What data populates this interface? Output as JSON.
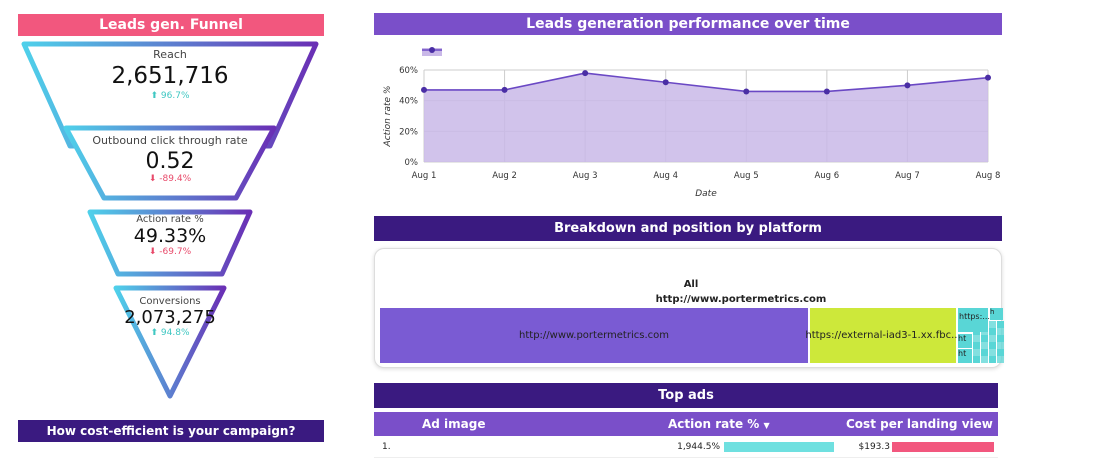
{
  "funnel": {
    "title": "Leads gen. Funnel",
    "footer": "How cost-efficient is your campaign?",
    "stages": [
      {
        "label": "Reach",
        "value": "2,651,716",
        "change": "96.7%",
        "dir": "up",
        "arrow": "⬆"
      },
      {
        "label": "Outbound click through rate",
        "value": "0.52",
        "change": "-89.4%",
        "dir": "down",
        "arrow": "⬇"
      },
      {
        "label": "Action rate %",
        "value": "49.33%",
        "change": "-69.7%",
        "dir": "down",
        "arrow": "⬇"
      },
      {
        "label": "Conversions",
        "value": "2,073,275",
        "change": "94.8%",
        "dir": "up",
        "arrow": "⬆"
      }
    ]
  },
  "perf": {
    "title": "Leads generation performance over time"
  },
  "chart_data": {
    "type": "area",
    "title": "Leads generation performance over time",
    "xlabel": "Date",
    "ylabel": "Action rate %",
    "categories": [
      "Aug 1",
      "Aug 2",
      "Aug 3",
      "Aug 4",
      "Aug 5",
      "Aug 6",
      "Aug 7",
      "Aug 8"
    ],
    "series": [
      {
        "values": [
          47,
          47,
          58,
          52,
          46,
          46,
          50,
          55
        ]
      }
    ],
    "ylim": [
      0,
      60
    ],
    "yticks": [
      "0%",
      "20%",
      "40%",
      "60%"
    ],
    "ytick_values": [
      0,
      20,
      40,
      60
    ],
    "grid": true,
    "legend": "top-left",
    "color": "#6a48c4",
    "fill": "#c9b8e8"
  },
  "breakdown": {
    "title": "Breakdown and position by platform",
    "header_all": "All",
    "header_url": "http://www.portermetrics.com",
    "cell_main": "http://www.portermetrics.com",
    "cell_second": "https://external-iad3-1.xx.fbc...",
    "cell_third": "https:...",
    "cell_small_a": "ht",
    "cell_small_b": "ht",
    "cell_tiny": "h"
  },
  "topads": {
    "title": "Top ads",
    "col_image": "Ad image",
    "col_action": "Action rate %",
    "col_action_sort": "▼",
    "col_cost": "Cost per landing view",
    "rows": [
      {
        "index": "1.",
        "action": "1,944.5%",
        "action_frac": 1.0,
        "cost": "$193.3",
        "cost_frac": 1.0
      }
    ]
  },
  "colors": {
    "pink": "#f2577e",
    "purple": "#7a4fc9",
    "dark": "#3a1a80",
    "cyan": "#59d6d6",
    "lime": "#cde83a",
    "bar_cyan": "#6fe0e0",
    "bar_pink": "#f2577e"
  }
}
